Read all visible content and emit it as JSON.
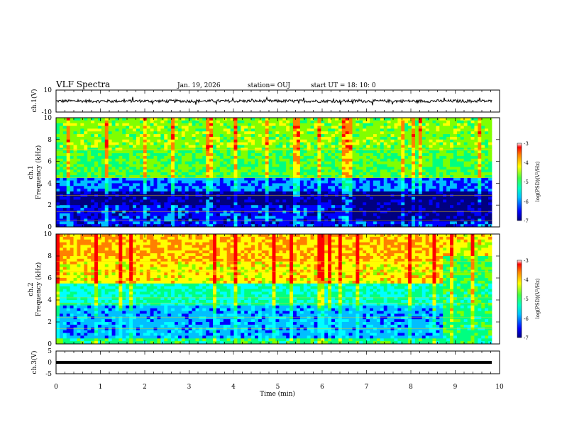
{
  "header": {
    "title": "VLF Spectra",
    "date": "Jan. 19, 2026",
    "station": "station= OUJ",
    "start": "start UT =  18: 10: 0"
  },
  "chart_data": [
    {
      "type": "line",
      "ylabel": "ch.1(V)",
      "ylim": [
        -10,
        10
      ],
      "yticks": [
        "10",
        "-10"
      ],
      "xlim": [
        0,
        10
      ],
      "series": [
        {
          "baseline": 0,
          "noise_amplitude": 1.3
        }
      ]
    },
    {
      "type": "heatmap",
      "ylabel_line1": "ch.1",
      "ylabel_line2": "Frequency (kHz)",
      "ylim": [
        0,
        10
      ],
      "yticks": [
        "0",
        "2",
        "4",
        "6",
        "8",
        "10"
      ],
      "xlim": [
        0,
        10
      ],
      "colorbar": {
        "label": "log(PSD)(V²/Hz)",
        "range": [
          -7,
          -3
        ],
        "ticks": [
          "-3",
          "-4",
          "-5",
          "-6",
          "-7"
        ]
      }
    },
    {
      "type": "heatmap",
      "ylabel_line1": "ch.2",
      "ylabel_line2": "Frequency (kHz)",
      "ylim": [
        0,
        10
      ],
      "yticks": [
        "0",
        "2",
        "4",
        "6",
        "8",
        "10"
      ],
      "xlim": [
        0,
        10
      ],
      "colorbar": {
        "label": "log(PSD)(V²/Hz)",
        "range": [
          -7,
          -3
        ],
        "ticks": [
          "-3",
          "-4",
          "-5",
          "-6",
          "-7"
        ]
      }
    },
    {
      "type": "line",
      "ylabel": "ch.3(V)",
      "ylim": [
        -5,
        5
      ],
      "yticks": [
        "5",
        "0",
        "-5"
      ],
      "xlim": [
        0,
        10
      ],
      "series": [
        {
          "baseline": 0
        }
      ]
    }
  ],
  "xaxis": {
    "label": "Time (min)",
    "ticks": [
      "0",
      "1",
      "2",
      "3",
      "4",
      "5",
      "6",
      "7",
      "8",
      "9",
      "10"
    ],
    "range": [
      0,
      10
    ]
  },
  "colors": {
    "colormap": [
      "#000080",
      "#0000ff",
      "#00bfff",
      "#00ffff",
      "#00ff80",
      "#80ff00",
      "#ffff00",
      "#ff8000",
      "#ff0000",
      "#ffffff"
    ]
  }
}
